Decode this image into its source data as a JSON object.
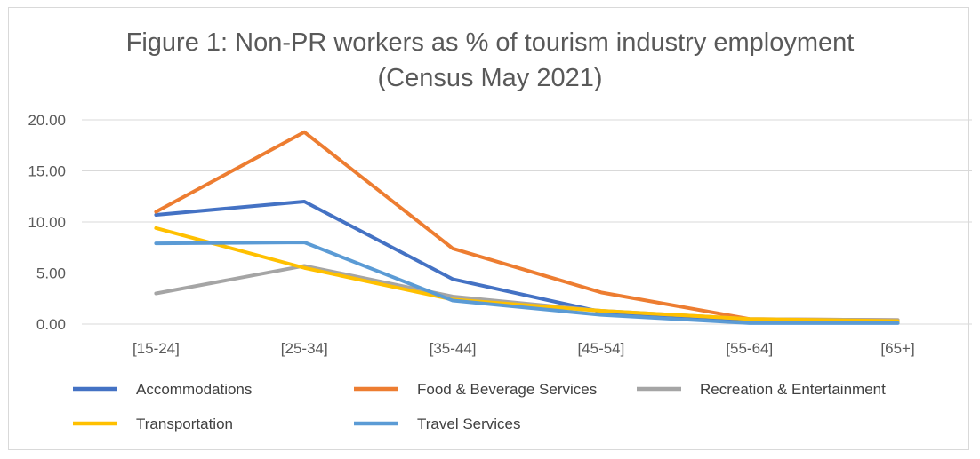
{
  "chart_data": {
    "type": "line",
    "title_line1": "Figure 1: Non-PR workers as % of tourism industry employment",
    "title_line2": "(Census May 2021)",
    "xlabel": "",
    "ylabel": "",
    "ylim": [
      0,
      20
    ],
    "y_ticks": [
      "0.00",
      "5.00",
      "10.00",
      "15.00",
      "20.00"
    ],
    "categories": [
      "[15-24]",
      "[25-34]",
      "[35-44]",
      "[45-54]",
      "[55-64]",
      "[65+]"
    ],
    "grid": "horizontal",
    "legend_position": "bottom",
    "series": [
      {
        "name": "Accommodations",
        "color": "#4472c4",
        "values": [
          10.7,
          12.0,
          4.4,
          1.2,
          0.3,
          0.2
        ]
      },
      {
        "name": "Food & Beverage Services",
        "color": "#ed7d31",
        "values": [
          11.0,
          18.8,
          7.4,
          3.1,
          0.5,
          0.4
        ]
      },
      {
        "name": "Recreation & Entertainment",
        "color": "#a5a5a5",
        "values": [
          3.0,
          5.7,
          2.7,
          1.3,
          0.5,
          0.4
        ]
      },
      {
        "name": "Transportation",
        "color": "#ffc000",
        "values": [
          9.4,
          5.5,
          2.4,
          1.3,
          0.5,
          0.3
        ]
      },
      {
        "name": "Travel Services",
        "color": "#5b9bd5",
        "values": [
          7.9,
          8.0,
          2.3,
          0.9,
          0.1,
          0.1
        ]
      }
    ]
  }
}
